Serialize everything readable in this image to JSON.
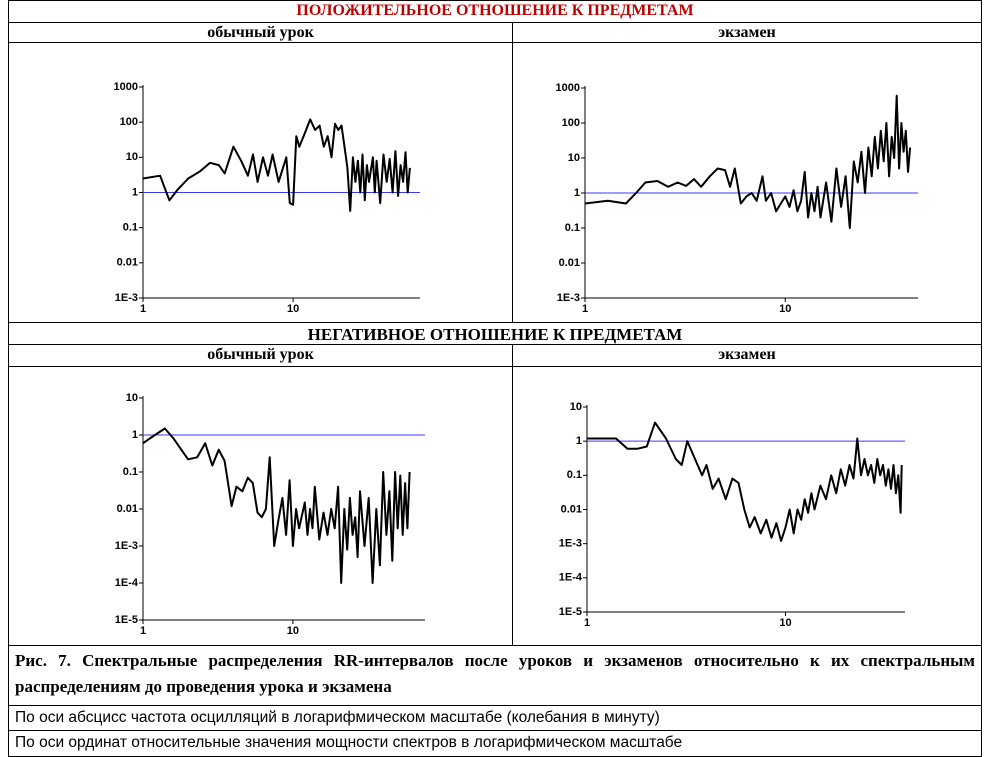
{
  "sections": [
    {
      "title": "ПОЛОЖИТЕЛЬНОЕ ОТНОШЕНИЕ К ПРЕДМЕТАМ",
      "columns": [
        "обычный урок",
        "экзамен"
      ]
    },
    {
      "title": "НЕГАТИВНОЕ ОТНОШЕНИЕ К ПРЕДМЕТАМ",
      "columns": [
        "обычный урок",
        "экзамен"
      ]
    }
  ],
  "caption": "Рис. 7. Спектральные распределения RR-интервалов после уроков и экзаменов относительно к их спектральным распределениям до проведения урока и экзамена",
  "notes": [
    "По оси абсцисс частота осцилляций в логарифмическом масштабе (колебания в минуту)",
    "По оси ординат относительные значения мощности спектров в логарифмическом масштабе"
  ],
  "chart_data": [
    {
      "type": "line",
      "xlog": true,
      "ylog": true,
      "xlim": [
        1,
        70
      ],
      "ylim": [
        0.001,
        1000
      ],
      "xticks": [
        1,
        10
      ],
      "yticks": [
        1000,
        100,
        10,
        1,
        0.1,
        0.01,
        {
          "value": 0.001,
          "label": "1E-3"
        }
      ],
      "hline": {
        "value": 1,
        "color": "#3a3aff"
      },
      "x": [
        1,
        1.3,
        1.5,
        1.7,
        2,
        2.4,
        2.8,
        3.2,
        3.5,
        4,
        4.5,
        5,
        5.4,
        5.8,
        6.3,
        6.8,
        7.3,
        8,
        9,
        9.5,
        10,
        10.5,
        11,
        12,
        13,
        14,
        15,
        16,
        17,
        18,
        19,
        20,
        21,
        22,
        23,
        24,
        25,
        26,
        27,
        28,
        29,
        30,
        31,
        32,
        34,
        35,
        36,
        38,
        40,
        42,
        44,
        46,
        48,
        50,
        52,
        54,
        56,
        58,
        60
      ],
      "series": [
        {
          "color": "#000000",
          "values": [
            2.5,
            3,
            0.6,
            1.2,
            2.5,
            4,
            7,
            6,
            3.5,
            20,
            8,
            3,
            12,
            2,
            10,
            3,
            12,
            2,
            10,
            0.5,
            0.45,
            40,
            20,
            50,
            120,
            60,
            80,
            20,
            40,
            10,
            90,
            60,
            80,
            20,
            5,
            0.3,
            10,
            2,
            8,
            1,
            12,
            0.6,
            6,
            2,
            10,
            1,
            8,
            0.5,
            12,
            2,
            9,
            1,
            15,
            0.8,
            6,
            2,
            14,
            1,
            5
          ]
        }
      ]
    },
    {
      "type": "line",
      "xlog": true,
      "ylog": true,
      "xlim": [
        1,
        46
      ],
      "ylim": [
        0.001,
        1000
      ],
      "xticks": [
        1,
        10
      ],
      "yticks": [
        1000,
        100,
        10,
        1,
        0.1,
        0.01,
        {
          "value": 0.001,
          "label": "1E-3"
        }
      ],
      "hline": {
        "value": 1,
        "color": "#3a3aff"
      },
      "x": [
        1,
        1.3,
        1.6,
        1.8,
        2,
        2.3,
        2.6,
        2.9,
        3.2,
        3.5,
        3.8,
        4.2,
        4.6,
        5,
        5.3,
        5.6,
        6,
        6.4,
        6.8,
        7.2,
        7.7,
        8,
        8.5,
        9,
        9.5,
        10,
        10.5,
        11,
        11.5,
        12,
        12.5,
        13,
        13.5,
        14,
        14.5,
        15,
        16,
        17,
        18,
        19,
        20,
        21,
        22,
        23,
        24,
        25,
        26,
        27,
        28,
        29,
        30,
        31,
        32,
        33,
        34,
        35,
        36,
        37,
        38,
        39,
        40,
        41,
        42
      ],
      "series": [
        {
          "color": "#000000",
          "values": [
            0.5,
            0.6,
            0.5,
            1,
            2,
            2.2,
            1.5,
            2,
            1.6,
            2.5,
            1.5,
            3,
            5,
            4.5,
            1.5,
            5,
            0.5,
            0.8,
            1,
            0.6,
            3,
            0.6,
            1,
            0.3,
            0.5,
            0.8,
            0.4,
            1.2,
            0.3,
            0.6,
            4,
            0.2,
            1,
            0.3,
            1.5,
            0.2,
            2,
            0.15,
            5,
            0.4,
            3,
            0.1,
            8,
            2,
            15,
            1,
            20,
            3,
            40,
            5,
            60,
            8,
            100,
            3,
            40,
            10,
            600,
            5,
            100,
            15,
            60,
            4,
            20
          ]
        }
      ]
    },
    {
      "type": "line",
      "xlog": true,
      "ylog": true,
      "xlim": [
        1,
        76
      ],
      "ylim": [
        1e-05,
        10
      ],
      "xticks": [
        1,
        10
      ],
      "yticks": [
        10,
        1,
        0.1,
        0.01,
        {
          "value": 0.001,
          "label": "1E-3"
        },
        {
          "value": 0.0001,
          "label": "1E-4"
        },
        {
          "value": 1e-05,
          "label": "1E-5"
        }
      ],
      "hline": {
        "value": 1,
        "color": "#3a3aff"
      },
      "x": [
        1,
        1.2,
        1.4,
        1.6,
        1.8,
        2,
        2.3,
        2.6,
        2.9,
        3.2,
        3.5,
        3.9,
        4.2,
        4.6,
        5,
        5.4,
        5.8,
        6.2,
        6.6,
        7,
        7.5,
        8,
        8.5,
        9,
        9.5,
        10,
        10.5,
        11,
        12,
        12.5,
        13,
        13.5,
        14,
        15,
        16,
        17,
        18,
        19,
        20,
        21,
        22,
        23,
        24,
        25,
        26,
        27,
        28,
        30,
        32,
        34,
        36,
        38,
        40,
        42,
        44,
        46,
        48,
        50,
        52,
        54,
        56,
        58,
        60
      ],
      "series": [
        {
          "color": "#000000",
          "values": [
            0.6,
            1,
            1.5,
            0.8,
            0.4,
            0.22,
            0.25,
            0.6,
            0.15,
            0.4,
            0.2,
            0.012,
            0.04,
            0.03,
            0.07,
            0.05,
            0.008,
            0.006,
            0.01,
            0.25,
            0.001,
            0.005,
            0.02,
            0.002,
            0.06,
            0.001,
            0.01,
            0.003,
            0.015,
            0.002,
            0.01,
            0.003,
            0.04,
            0.0015,
            0.008,
            0.002,
            0.01,
            0.003,
            0.04,
            0.0001,
            0.01,
            0.0008,
            0.02,
            0.002,
            0.006,
            0.0005,
            0.03,
            0.001,
            0.02,
            0.0001,
            0.01,
            0.0003,
            0.1,
            0.002,
            0.03,
            0.0004,
            0.1,
            0.003,
            0.08,
            0.002,
            0.05,
            0.003,
            0.1
          ]
        }
      ]
    },
    {
      "type": "line",
      "xlog": true,
      "ylog": true,
      "xlim": [
        1,
        40
      ],
      "ylim": [
        1e-05,
        10
      ],
      "xticks": [
        1,
        10
      ],
      "yticks": [
        10,
        1,
        0.1,
        0.01,
        {
          "value": 0.001,
          "label": "1E-3"
        },
        {
          "value": 0.0001,
          "label": "1E-4"
        },
        {
          "value": 1e-05,
          "label": "1E-5"
        }
      ],
      "hline": {
        "value": 1,
        "color": "#3a3aff"
      },
      "x": [
        1,
        1.2,
        1.4,
        1.6,
        1.8,
        2,
        2.2,
        2.5,
        2.8,
        3,
        3.2,
        3.5,
        3.8,
        4,
        4.3,
        4.6,
        5,
        5.4,
        5.8,
        6.2,
        6.6,
        7,
        7.5,
        8,
        8.5,
        9,
        9.5,
        10,
        10.5,
        11,
        11.5,
        12,
        12.5,
        13,
        13.5,
        14,
        15,
        16,
        17,
        18,
        19,
        20,
        21,
        22,
        23,
        24,
        25,
        26,
        27,
        28,
        29,
        30,
        31,
        32,
        33,
        34,
        35,
        36,
        37,
        38,
        38.5
      ],
      "series": [
        {
          "color": "#000000",
          "values": [
            1.2,
            1.2,
            1.2,
            0.6,
            0.6,
            0.7,
            3.5,
            1.2,
            0.3,
            0.2,
            1,
            0.3,
            0.1,
            0.2,
            0.04,
            0.08,
            0.02,
            0.08,
            0.06,
            0.01,
            0.003,
            0.006,
            0.002,
            0.005,
            0.0015,
            0.004,
            0.0012,
            0.003,
            0.01,
            0.002,
            0.01,
            0.005,
            0.02,
            0.008,
            0.03,
            0.01,
            0.05,
            0.02,
            0.1,
            0.03,
            0.15,
            0.05,
            0.2,
            0.08,
            1.2,
            0.1,
            0.3,
            0.1,
            0.2,
            0.06,
            0.3,
            0.1,
            0.2,
            0.05,
            0.15,
            0.04,
            0.2,
            0.03,
            0.1,
            0.008,
            0.2
          ]
        }
      ]
    }
  ]
}
